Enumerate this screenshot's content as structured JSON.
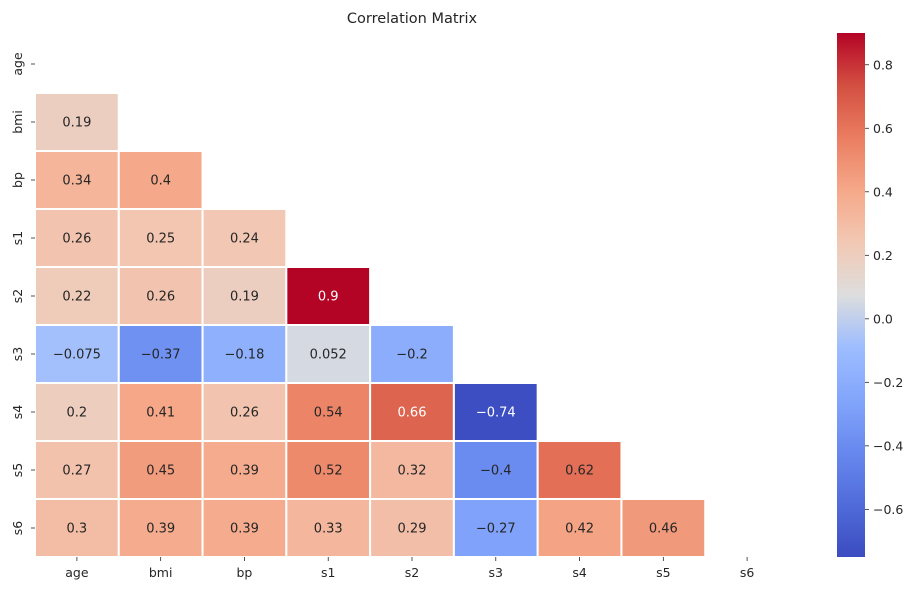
{
  "chart_data": {
    "type": "heatmap",
    "title": "Correlation Matrix",
    "xlabel": "",
    "ylabel": "",
    "labels": [
      "age",
      "bmi",
      "bp",
      "s1",
      "s2",
      "s3",
      "s4",
      "s5",
      "s6"
    ],
    "mask": "upper-triangle-including-diagonal",
    "matrix": [
      [
        null,
        null,
        null,
        null,
        null,
        null,
        null,
        null,
        null
      ],
      [
        0.19,
        null,
        null,
        null,
        null,
        null,
        null,
        null,
        null
      ],
      [
        0.34,
        0.4,
        null,
        null,
        null,
        null,
        null,
        null,
        null
      ],
      [
        0.26,
        0.25,
        0.24,
        null,
        null,
        null,
        null,
        null,
        null
      ],
      [
        0.22,
        0.26,
        0.19,
        0.9,
        null,
        null,
        null,
        null,
        null
      ],
      [
        -0.075,
        -0.37,
        -0.18,
        0.052,
        -0.2,
        null,
        null,
        null,
        null
      ],
      [
        0.2,
        0.41,
        0.26,
        0.54,
        0.66,
        -0.74,
        null,
        null,
        null
      ],
      [
        0.27,
        0.45,
        0.39,
        0.52,
        0.32,
        -0.4,
        0.62,
        null,
        null
      ],
      [
        0.3,
        0.39,
        0.39,
        0.33,
        0.29,
        -0.27,
        0.42,
        0.46,
        null
      ]
    ],
    "colorbar": {
      "colormap": "coolwarm",
      "vmin": -0.75,
      "vmax": 0.9,
      "ticks": [
        -0.6,
        -0.4,
        -0.2,
        0.0,
        0.2,
        0.4,
        0.6,
        0.8
      ],
      "tick_labels": [
        "−0.6",
        "−0.4",
        "−0.2",
        "0.0",
        "0.2",
        "0.4",
        "0.6",
        "0.8"
      ]
    },
    "grid": false,
    "legend": "right"
  }
}
